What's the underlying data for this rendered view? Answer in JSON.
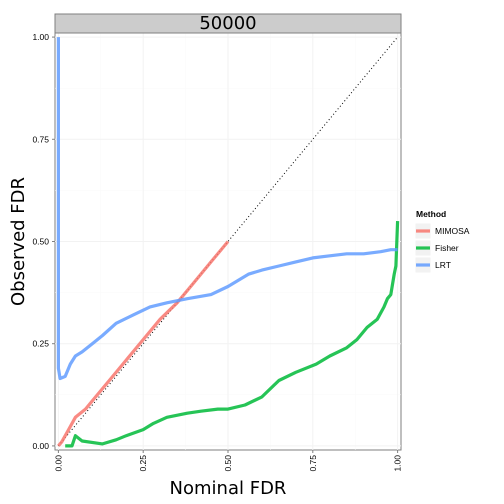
{
  "chart_data": {
    "type": "line",
    "facet_label": "50000",
    "xlabel": "Nominal FDR",
    "ylabel": "Observed FDR",
    "xlim": [
      -0.01,
      1.01
    ],
    "ylim": [
      -0.01,
      1.01
    ],
    "x_ticks": [
      0,
      0.25,
      0.5,
      0.75,
      1
    ],
    "x_tick_labels": [
      "0.00",
      "0.25",
      "0.50",
      "0.75",
      "1.00"
    ],
    "y_ticks": [
      0,
      0.25,
      0.5,
      0.75,
      1
    ],
    "y_tick_labels": [
      "0.00",
      "0.25",
      "0.50",
      "0.75",
      "1.00"
    ],
    "grid": true,
    "reference_line": {
      "style": "dotted",
      "from": [
        0,
        0
      ],
      "to": [
        1,
        1
      ]
    },
    "legend": {
      "title": "Method",
      "placement": "right"
    },
    "series": [
      {
        "name": "MIMOSA",
        "color": "#F8766D",
        "points": [
          [
            0.0,
            0.0
          ],
          [
            0.01,
            0.01
          ],
          [
            0.03,
            0.04
          ],
          [
            0.05,
            0.07
          ],
          [
            0.08,
            0.09
          ],
          [
            0.1,
            0.11
          ],
          [
            0.15,
            0.16
          ],
          [
            0.2,
            0.21
          ],
          [
            0.25,
            0.26
          ],
          [
            0.3,
            0.31
          ],
          [
            0.35,
            0.35
          ],
          [
            0.4,
            0.4
          ],
          [
            0.45,
            0.45
          ],
          [
            0.5,
            0.5
          ]
        ]
      },
      {
        "name": "Fisher",
        "color": "#00BA38",
        "points": [
          [
            0.02,
            0.0
          ],
          [
            0.04,
            0.0
          ],
          [
            0.05,
            0.025
          ],
          [
            0.07,
            0.012
          ],
          [
            0.13,
            0.005
          ],
          [
            0.17,
            0.015
          ],
          [
            0.2,
            0.025
          ],
          [
            0.25,
            0.04
          ],
          [
            0.28,
            0.055
          ],
          [
            0.32,
            0.07
          ],
          [
            0.38,
            0.08
          ],
          [
            0.42,
            0.085
          ],
          [
            0.47,
            0.09
          ],
          [
            0.5,
            0.09
          ],
          [
            0.55,
            0.1
          ],
          [
            0.6,
            0.12
          ],
          [
            0.65,
            0.16
          ],
          [
            0.7,
            0.18
          ],
          [
            0.76,
            0.2
          ],
          [
            0.8,
            0.22
          ],
          [
            0.85,
            0.24
          ],
          [
            0.88,
            0.26
          ],
          [
            0.91,
            0.29
          ],
          [
            0.94,
            0.31
          ],
          [
            0.96,
            0.34
          ],
          [
            0.97,
            0.36
          ],
          [
            0.98,
            0.37
          ],
          [
            0.99,
            0.42
          ],
          [
            0.995,
            0.44
          ],
          [
            1.0,
            0.55
          ]
        ]
      },
      {
        "name": "LRT",
        "color": "#619CFF",
        "points": [
          [
            0.0,
            1.0
          ],
          [
            0.0,
            0.19
          ],
          [
            0.005,
            0.165
          ],
          [
            0.02,
            0.17
          ],
          [
            0.035,
            0.2
          ],
          [
            0.05,
            0.22
          ],
          [
            0.07,
            0.23
          ],
          [
            0.1,
            0.25
          ],
          [
            0.13,
            0.27
          ],
          [
            0.17,
            0.3
          ],
          [
            0.22,
            0.32
          ],
          [
            0.27,
            0.34
          ],
          [
            0.32,
            0.35
          ],
          [
            0.38,
            0.36
          ],
          [
            0.45,
            0.37
          ],
          [
            0.5,
            0.39
          ],
          [
            0.56,
            0.42
          ],
          [
            0.6,
            0.43
          ],
          [
            0.65,
            0.44
          ],
          [
            0.7,
            0.45
          ],
          [
            0.75,
            0.46
          ],
          [
            0.8,
            0.465
          ],
          [
            0.85,
            0.47
          ],
          [
            0.9,
            0.47
          ],
          [
            0.95,
            0.475
          ],
          [
            0.98,
            0.48
          ],
          [
            1.0,
            0.48
          ]
        ]
      }
    ]
  }
}
